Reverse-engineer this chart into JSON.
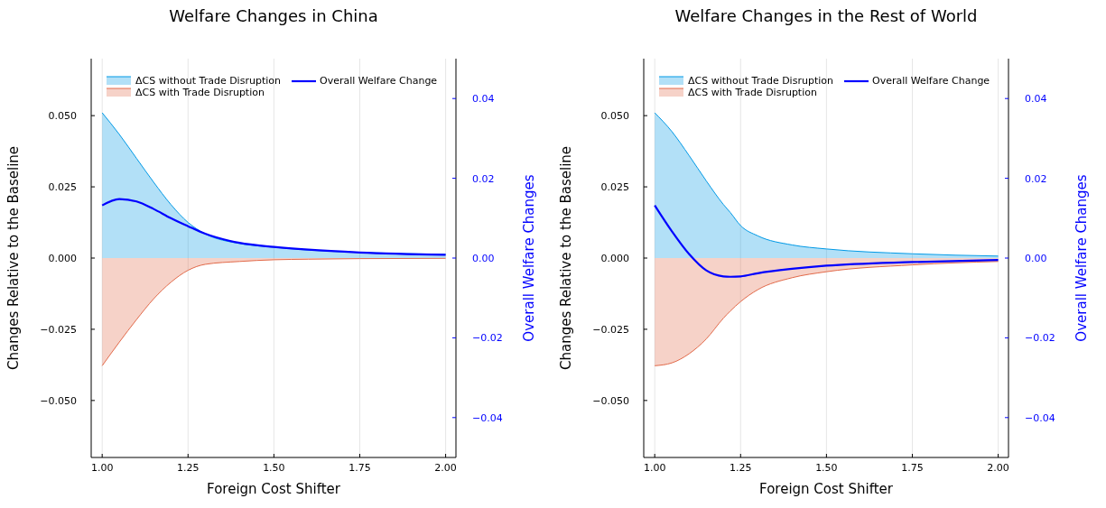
{
  "chart_data": [
    {
      "type": "area",
      "title": "Welfare Changes in China",
      "xlabel": "Foreign Cost Shifter",
      "ylabel": "Changes Relative to the Baseline",
      "y2label": "Overall Welfare Changes",
      "x": [
        1.0,
        1.05,
        1.1,
        1.15,
        1.2,
        1.25,
        1.3,
        1.4,
        1.5,
        1.6,
        1.75,
        2.0
      ],
      "series": [
        {
          "name": "ΔCS without Trade Disruption",
          "color": "#0099e6",
          "values": [
            0.051,
            0.0434,
            0.035,
            0.0266,
            0.0188,
            0.0125,
            0.0085,
            0.0051,
            0.0038,
            0.0028,
            0.002,
            0.0013
          ]
        },
        {
          "name": "ΔCS with Trade Disruption",
          "color": "#e26a4a",
          "values": [
            -0.0378,
            -0.0295,
            -0.0216,
            -0.0143,
            -0.0085,
            -0.0043,
            -0.0022,
            -0.0012,
            -0.0006,
            -0.0004,
            -0.0002,
            -0.0001
          ]
        },
        {
          "name": "Overall Welfare Change",
          "type": "line",
          "axis": "y2",
          "color": "#0000ff",
          "values": [
            0.0132,
            0.0148,
            0.0142,
            0.0123,
            0.01,
            0.008,
            0.0061,
            0.0038,
            0.0028,
            0.0021,
            0.0014,
            0.0008
          ]
        }
      ],
      "xlim": [
        0.968,
        2.03
      ],
      "ylim": [
        -0.07,
        0.07
      ],
      "y2lim": [
        -0.05,
        0.05
      ],
      "xticks": [
        {
          "value": 1,
          "label": "1.00"
        },
        {
          "value": 1.25,
          "label": "1.25"
        },
        {
          "value": 1.5,
          "label": "1.50"
        },
        {
          "value": 1.75,
          "label": "1.75"
        },
        {
          "value": 2,
          "label": "2.00"
        }
      ],
      "yticks": [
        {
          "value": -0.05,
          "label": "−0.050"
        },
        {
          "value": -0.025,
          "label": "−0.025"
        },
        {
          "value": 0,
          "label": "0.000"
        },
        {
          "value": 0.025,
          "label": "0.025"
        },
        {
          "value": 0.05,
          "label": "0.050"
        }
      ],
      "y2ticks": [
        {
          "value": -0.04,
          "label": "−0.04"
        },
        {
          "value": -0.02,
          "label": "−0.02"
        },
        {
          "value": 0,
          "label": "0.00"
        },
        {
          "value": 0.02,
          "label": "0.02"
        },
        {
          "value": 0.04,
          "label": "0.04"
        }
      ],
      "grid": "x",
      "legend": "top left"
    },
    {
      "type": "area",
      "title": "Welfare Changes in the Rest of World",
      "xlabel": "Foreign Cost Shifter",
      "ylabel": "Changes Relative to the Baseline",
      "y2label": "Overall Welfare Changes",
      "x": [
        1.0,
        1.05,
        1.1,
        1.15,
        1.2,
        1.22,
        1.25,
        1.3,
        1.4,
        1.5,
        1.75,
        2.0
      ],
      "series": [
        {
          "name": "ΔCS without Trade Disruption",
          "color": "#0099e6",
          "values": [
            0.051,
            0.0444,
            0.036,
            0.0271,
            0.0188,
            0.016,
            0.0114,
            0.0078,
            0.0046,
            0.0032,
            0.0015,
            0.0007
          ]
        },
        {
          "name": "ΔCS with Trade Disruption",
          "color": "#e26a4a",
          "values": [
            -0.0378,
            -0.0368,
            -0.0336,
            -0.0284,
            -0.0211,
            -0.0186,
            -0.0153,
            -0.0111,
            -0.0069,
            -0.0048,
            -0.0024,
            -0.0012
          ]
        },
        {
          "name": "Overall Welfare Change",
          "type": "line",
          "axis": "y2",
          "color": "#0000ff",
          "values": [
            0.0132,
            0.0067,
            0.001,
            -0.0031,
            -0.0046,
            -0.0047,
            -0.0046,
            -0.0038,
            -0.0027,
            -0.0019,
            -0.001,
            -0.0005
          ]
        }
      ],
      "xlim": [
        0.968,
        2.03
      ],
      "ylim": [
        -0.07,
        0.07
      ],
      "y2lim": [
        -0.05,
        0.05
      ],
      "xticks": [
        {
          "value": 1,
          "label": "1.00"
        },
        {
          "value": 1.25,
          "label": "1.25"
        },
        {
          "value": 1.5,
          "label": "1.50"
        },
        {
          "value": 1.75,
          "label": "1.75"
        },
        {
          "value": 2,
          "label": "2.00"
        }
      ],
      "yticks": [
        {
          "value": -0.05,
          "label": "−0.050"
        },
        {
          "value": -0.025,
          "label": "−0.025"
        },
        {
          "value": 0,
          "label": "0.000"
        },
        {
          "value": 0.025,
          "label": "0.025"
        },
        {
          "value": 0.05,
          "label": "0.050"
        }
      ],
      "y2ticks": [
        {
          "value": -0.04,
          "label": "−0.04"
        },
        {
          "value": -0.02,
          "label": "−0.02"
        },
        {
          "value": 0,
          "label": "0.00"
        },
        {
          "value": 0.02,
          "label": "0.02"
        },
        {
          "value": 0.04,
          "label": "0.04"
        }
      ],
      "grid": "x",
      "legend": "top left"
    }
  ]
}
